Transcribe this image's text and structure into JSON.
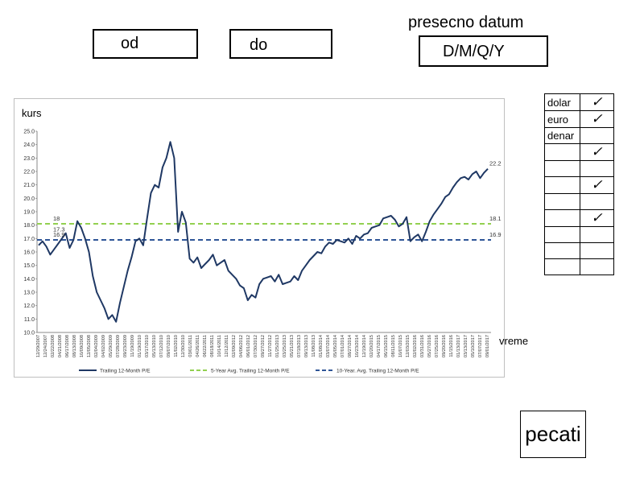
{
  "filters": {
    "from_label": "od",
    "to_label": "do",
    "period_label": "presecno datum",
    "period_value": "D/M/Q/Y"
  },
  "currency_table": [
    {
      "name": "dolar",
      "checked": true
    },
    {
      "name": "euro",
      "checked": true
    },
    {
      "name": "denar",
      "checked": false
    },
    {
      "name": "",
      "checked": true
    },
    {
      "name": "",
      "checked": false
    },
    {
      "name": "",
      "checked": true
    },
    {
      "name": "",
      "checked": false
    },
    {
      "name": "",
      "checked": true
    },
    {
      "name": "",
      "checked": false
    },
    {
      "name": "",
      "checked": false
    },
    {
      "name": "",
      "checked": false
    }
  ],
  "check_glyph": "✓",
  "print_label": "pecati",
  "chart_data": {
    "type": "line",
    "title": "",
    "ylabel": "kurs",
    "xlabel": "vreme",
    "ylim": [
      10.0,
      25.0
    ],
    "yticks": [
      "10.0",
      "11.0",
      "12.0",
      "13.0",
      "14.0",
      "15.0",
      "16.0",
      "17.0",
      "18.0",
      "19.0",
      "20.0",
      "21.0",
      "22.0",
      "23.0",
      "24.0",
      "25.0"
    ],
    "x_tick_labels": [
      "12/29/2007",
      "12/24/2007",
      "02/22/2008",
      "04/21/2008",
      "06/17/2008",
      "08/13/2008",
      "10/09/2008",
      "12/05/2008",
      "02/04/2009",
      "04/02/2009",
      "05/29/2009",
      "07/28/2009",
      "09/23/2009",
      "11/19/2009",
      "01/19/2010",
      "03/17/2010",
      "05/13/2010",
      "07/12/2010",
      "09/07/2010",
      "11/02/2010",
      "12/30/2010",
      "03/01/2011",
      "04/26/2011",
      "06/22/2011",
      "08/18/2011",
      "10/14/2011",
      "12/12/2011",
      "02/09/2012",
      "04/06/2012",
      "06/01/2012",
      "07/30/2012",
      "09/27/2012",
      "11/27/2012",
      "01/25/2013",
      "03/25/2013",
      "05/21/2013",
      "07/18/2013",
      "09/13/2013",
      "11/08/2013",
      "01/08/2014",
      "03/07/2014",
      "05/05/2014",
      "07/01/2014",
      "08/27/2014",
      "10/23/2014",
      "12/19/2014",
      "02/20/2015",
      "04/17/2015",
      "06/15/2015",
      "08/11/2015",
      "10/07/2015",
      "12/03/2015",
      "02/02/2016",
      "03/31/2016",
      "05/27/2016",
      "07/25/2016",
      "09/20/2016",
      "11/15/2016",
      "01/13/2017",
      "03/13/2017",
      "05/10/2017",
      "07/07/2017",
      "09/01/2017"
    ],
    "series": [
      {
        "name": "Trailing 12-Month P/E",
        "color": "#1f3864",
        "style": "solid",
        "values": [
          16.5,
          16.8,
          16.4,
          15.8,
          16.2,
          16.6,
          17.0,
          17.4,
          16.3,
          16.9,
          18.3,
          17.8,
          17.0,
          16.0,
          14.2,
          13.0,
          12.4,
          11.8,
          11.0,
          11.3,
          10.8,
          12.2,
          13.4,
          14.6,
          15.6,
          16.8,
          17.0,
          16.5,
          18.5,
          20.4,
          21.0,
          20.8,
          22.3,
          23.0,
          24.2,
          23.0,
          17.5,
          19.0,
          18.2,
          15.5,
          15.2,
          15.6,
          14.8,
          15.1,
          15.4,
          15.8,
          15.0,
          15.2,
          15.4,
          14.6,
          14.3,
          14.0,
          13.5,
          13.3,
          12.4,
          12.8,
          12.6,
          13.6,
          14.0,
          14.1,
          14.2,
          13.8,
          14.3,
          13.6,
          13.7,
          13.8,
          14.2,
          13.9,
          14.6,
          15.0,
          15.4,
          15.7,
          16.0,
          15.9,
          16.4,
          16.7,
          16.6,
          16.9,
          16.8,
          16.7,
          17.0,
          16.6,
          17.2,
          17.0,
          17.3,
          17.4,
          17.8,
          17.9,
          18.0,
          18.5,
          18.6,
          18.7,
          18.4,
          17.9,
          18.1,
          18.6,
          16.8,
          17.1,
          17.3,
          16.8,
          17.5,
          18.3,
          18.8,
          19.2,
          19.6,
          20.1,
          20.3,
          20.8,
          21.2,
          21.5,
          21.6,
          21.4,
          21.8,
          22.0,
          21.5,
          21.9,
          22.2
        ]
      },
      {
        "name": "5-Year Avg. Trailing 12-Month P/E",
        "color": "#92d050",
        "style": "dashed",
        "value": 18.1
      },
      {
        "name": "10-Year. Avg. Trailing 12-Month P/E",
        "color": "#2f5597",
        "style": "dashed",
        "value": 16.9
      }
    ],
    "annotations": [
      {
        "text": "18",
        "value": 18.1,
        "side": "left"
      },
      {
        "text": "17.3",
        "value": 17.3,
        "side": "left"
      },
      {
        "text": "16.9",
        "value": 16.9,
        "side": "left"
      },
      {
        "text": "22.2",
        "value": 22.2,
        "side": "right"
      },
      {
        "text": "18.1",
        "value": 18.1,
        "side": "right"
      },
      {
        "text": "16.9",
        "value": 16.9,
        "side": "right"
      }
    ],
    "legend": "bottom"
  }
}
